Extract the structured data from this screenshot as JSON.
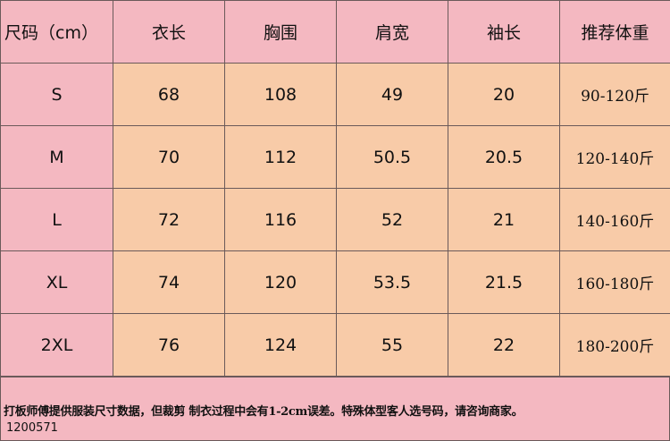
{
  "table": {
    "headers": [
      "尺码（cm）",
      "衣长",
      "胸围",
      "肩宽",
      "袖长",
      "推荐体重"
    ],
    "rows": [
      [
        "S",
        "68",
        "108",
        "49",
        "20",
        "90-120斤"
      ],
      [
        "M",
        "70",
        "112",
        "50.5",
        "20.5",
        "120-140斤"
      ],
      [
        "L",
        "72",
        "116",
        "52",
        "21",
        "140-160斤"
      ],
      [
        "XL",
        "74",
        "120",
        "53.5",
        "21.5",
        "160-180斤"
      ],
      [
        "2XL",
        "76",
        "124",
        "55",
        "22",
        "180-200斤"
      ]
    ]
  },
  "footer": {
    "note": "打板师傅提供服装尺寸数据，但裁剪 制衣过程中会有1-2cm误差。特殊体型客人选号码，请咨询商家。",
    "code": "1200571"
  },
  "colors": {
    "header_bg": "#f4b8c1",
    "cell_bg": "#f8cba8",
    "border": "#6b5a5a"
  }
}
